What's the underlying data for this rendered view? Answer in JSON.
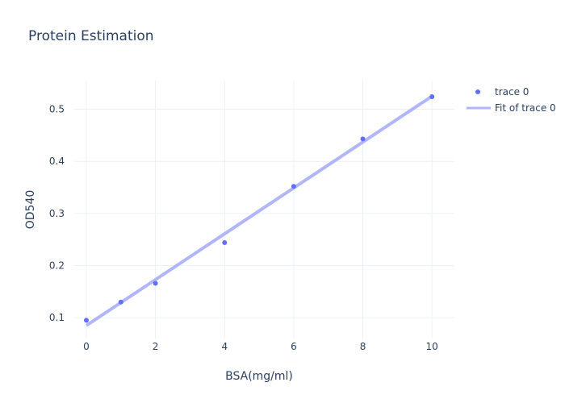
{
  "chart_data": {
    "type": "scatter",
    "title": "Protein Estimation",
    "xlabel": "BSA(mg/ml)",
    "ylabel": "OD540",
    "xlim": [
      -0.35,
      10.65
    ],
    "ylim": [
      0.06,
      0.555
    ],
    "xticks": [
      0,
      2,
      4,
      6,
      8,
      10
    ],
    "xtick_labels": [
      "0",
      "2",
      "4",
      "6",
      "8",
      "10"
    ],
    "yticks": [
      0.1,
      0.2,
      0.3,
      0.4,
      0.5
    ],
    "ytick_labels": [
      "0.1",
      "0.2",
      "0.3",
      "0.4",
      "0.5"
    ],
    "grid": true,
    "legend_position": "top-right",
    "series": [
      {
        "name": "trace 0",
        "mode": "markers",
        "color": "#636efa",
        "x": [
          0,
          1,
          2,
          4,
          6,
          8,
          10
        ],
        "y": [
          0.095,
          0.13,
          0.166,
          0.244,
          0.352,
          0.443,
          0.524
        ]
      },
      {
        "name": "Fit of trace 0",
        "mode": "lines",
        "color": "#b1b6fc",
        "x": [
          0,
          10
        ],
        "y": [
          0.085,
          0.525
        ]
      }
    ]
  }
}
